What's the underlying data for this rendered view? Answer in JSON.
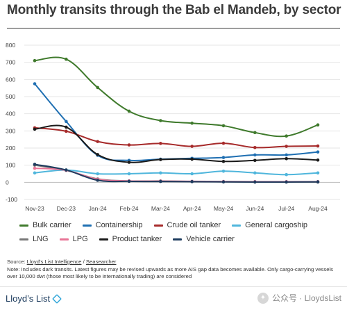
{
  "title": "Monthly transits through the Bab el Mandeb, by sector",
  "chart_data": {
    "type": "line",
    "categories": [
      "Nov-23",
      "Dec-23",
      "Jan-24",
      "Feb-24",
      "Mar-24",
      "Apr-24",
      "May-24",
      "Jun-24",
      "Jul-24",
      "Aug-24"
    ],
    "ylim": [
      -100,
      800
    ],
    "yticks": [
      -100,
      0,
      100,
      200,
      300,
      400,
      500,
      600,
      700,
      800
    ],
    "ytick_labels": [
      "-100",
      "0",
      "100",
      "200",
      "300",
      "400",
      "500",
      "600",
      "700",
      "800"
    ],
    "grid": true,
    "legend_position": "bottom",
    "series": [
      {
        "name": "Bulk carrier",
        "color": "#3f7a2c",
        "values": [
          710,
          718,
          553,
          415,
          360,
          345,
          330,
          290,
          270,
          335
        ]
      },
      {
        "name": "Containership",
        "color": "#1f6fb2",
        "values": [
          575,
          355,
          158,
          128,
          135,
          140,
          145,
          160,
          160,
          177
        ]
      },
      {
        "name": "Crude oil tanker",
        "color": "#a62a2a",
        "values": [
          318,
          298,
          238,
          218,
          227,
          210,
          228,
          203,
          210,
          212
        ]
      },
      {
        "name": "General cargoship",
        "color": "#4fb6dc",
        "values": [
          55,
          72,
          50,
          50,
          55,
          50,
          65,
          55,
          45,
          55
        ]
      },
      {
        "name": "LNG",
        "color": "#777777",
        "values": [
          100,
          70,
          20,
          8,
          8,
          5,
          3,
          2,
          2,
          2
        ]
      },
      {
        "name": "LPG",
        "color": "#e87496",
        "values": [
          82,
          70,
          18,
          8,
          7,
          6,
          5,
          4,
          4,
          4
        ]
      },
      {
        "name": "Product tanker",
        "color": "#1a1a1a",
        "values": [
          310,
          322,
          162,
          117,
          133,
          135,
          122,
          128,
          138,
          130
        ]
      },
      {
        "name": "Vehicle carrier",
        "color": "#1d3b5e",
        "values": [
          105,
          72,
          12,
          6,
          5,
          4,
          3,
          2,
          2,
          3
        ]
      }
    ]
  },
  "notes": {
    "source_prefix": "Source: ",
    "source_1": "Lloyd's List Intelligence",
    "source_sep": " / ",
    "source_2": "Seasearcher",
    "note": "Note: Includes dark transits. Latest figures may be revised upwards as more AIS gap data becomes available. Only cargo-carrying vessels over 10,000 dwt (those most likely to be internationally trading) are considered"
  },
  "brand": "Lloyd’s List",
  "watermark": "公众号 · LloydsList"
}
